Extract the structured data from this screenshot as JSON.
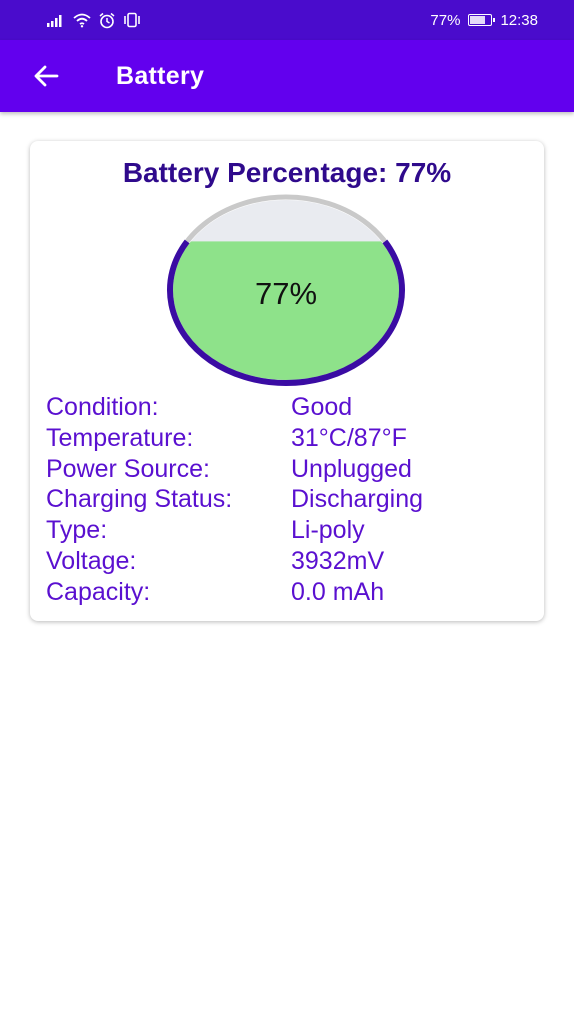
{
  "status_bar": {
    "battery_percent": "77%",
    "battery_level": 0.77,
    "time": "12:38",
    "left_icons": [
      "signal-icon",
      "wifi-icon",
      "alarm-icon",
      "vibrate-icon"
    ],
    "right_icons": [
      "battery-icon"
    ]
  },
  "app_bar": {
    "title": "Battery",
    "back_icon": "arrow-left-icon",
    "background": "#6200ee"
  },
  "card": {
    "title": "Battery Percentage: 77%",
    "gauge": {
      "label": "77%",
      "level": 0.77,
      "fill_color": "#8ee28a",
      "ring_color": "#3a0ca3",
      "track_color": "#c9c9c9"
    },
    "rows": [
      {
        "key": "Condition:",
        "value": "Good"
      },
      {
        "key": "Temperature:",
        "value": "31°C/87°F"
      },
      {
        "key": "Power Source:",
        "value": "Unplugged"
      },
      {
        "key": "Charging Status:",
        "value": "Discharging"
      },
      {
        "key": "Type:",
        "value": "Li-poly"
      },
      {
        "key": "Voltage:",
        "value": "3932mV"
      },
      {
        "key": "Capacity:",
        "value": "0.0 mAh"
      }
    ],
    "text_color": "#5a10d0",
    "title_color": "#2f0a8c"
  }
}
